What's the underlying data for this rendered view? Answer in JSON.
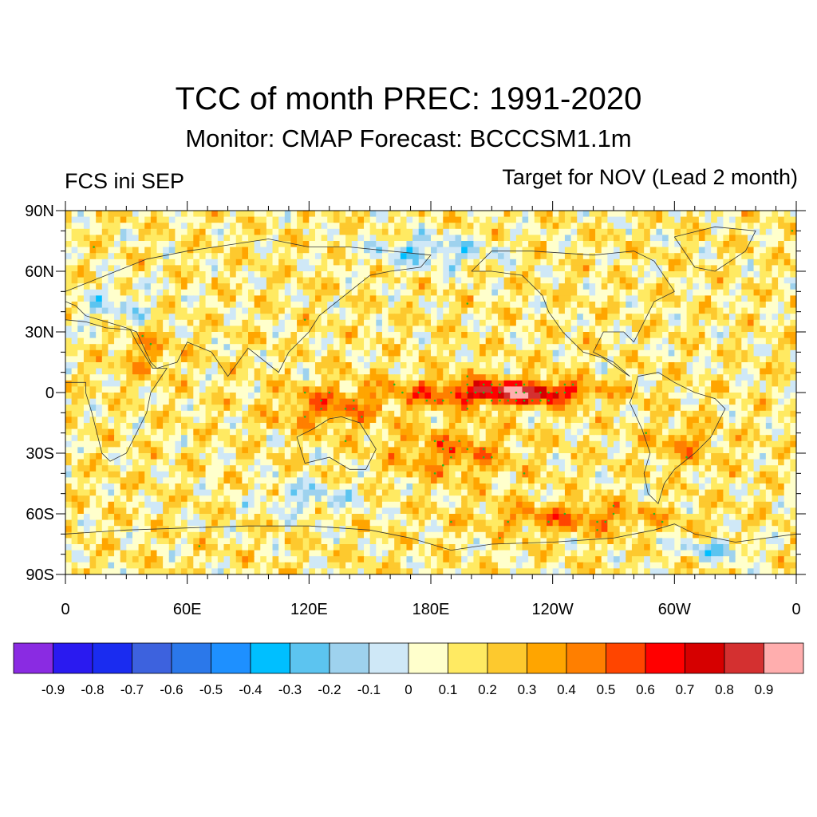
{
  "header": {
    "title": "TCC of month PREC: 1991-2020",
    "subtitle": "Monitor: CMAP   Forecast: BCCCSM1.1m",
    "left_label": "FCS ini SEP",
    "right_label": "Target for NOV (Lead 2 month)"
  },
  "map": {
    "lat_labels": [
      "90N",
      "60N",
      "30N",
      "0",
      "30S",
      "60S",
      "90S"
    ],
    "lon_labels": [
      "0",
      "60E",
      "120E",
      "180E",
      "120W",
      "60W",
      "0"
    ],
    "hatch_color": "#22bb22"
  },
  "colorbar": {
    "colors": [
      "#8a2be2",
      "#2a1af0",
      "#1a2cf0",
      "#3d62de",
      "#2b78ea",
      "#1e90ff",
      "#00bfff",
      "#5cc4f0",
      "#9ed2ee",
      "#cfe8f7",
      "#ffffcc",
      "#ffea62",
      "#fdc92e",
      "#ffa500",
      "#ff7f00",
      "#ff4500",
      "#ff0000",
      "#d60000",
      "#d43030",
      "#ffaeae"
    ],
    "labels": [
      "-0.9",
      "-0.8",
      "-0.7",
      "-0.6",
      "-0.5",
      "-0.4",
      "-0.3",
      "-0.2",
      "-0.1",
      "0",
      "0.1",
      "0.2",
      "0.3",
      "0.4",
      "0.5",
      "0.6",
      "0.7",
      "0.8",
      "0.9"
    ]
  }
}
